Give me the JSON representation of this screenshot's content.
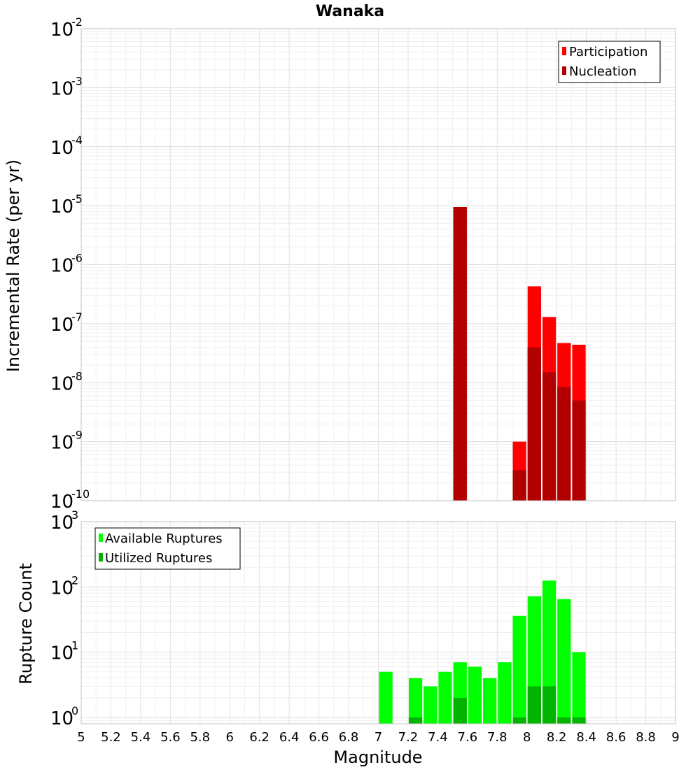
{
  "chart_data": [
    {
      "type": "bar",
      "title": "Wanaka",
      "xlabel": "",
      "ylabel": "Incremental Rate (per yr)",
      "yscale": "log",
      "ylim": [
        1e-10,
        0.01
      ],
      "xlim": [
        5,
        9
      ],
      "bin_width": 0.1,
      "grid": true,
      "legend_position": "top-right",
      "y_ticks": [
        {
          "base": "10",
          "exp": "-10",
          "value": 1e-10
        },
        {
          "base": "10",
          "exp": "-9",
          "value": 1e-09
        },
        {
          "base": "10",
          "exp": "-8",
          "value": 1e-08
        },
        {
          "base": "10",
          "exp": "-7",
          "value": 1e-07
        },
        {
          "base": "10",
          "exp": "-6",
          "value": 1e-06
        },
        {
          "base": "10",
          "exp": "-5",
          "value": 1e-05
        },
        {
          "base": "10",
          "exp": "-4",
          "value": 0.0001
        },
        {
          "base": "10",
          "exp": "-3",
          "value": 0.001
        },
        {
          "base": "10",
          "exp": "-2",
          "value": 0.01
        }
      ],
      "series": [
        {
          "name": "Participation",
          "color": "#ff0000",
          "x": [
            7.55,
            7.95,
            8.05,
            8.15,
            8.25,
            8.35
          ],
          "values": [
            9.5e-06,
            1e-09,
            4.3e-07,
            1.3e-07,
            4.7e-08,
            4.4e-08
          ]
        },
        {
          "name": "Nucleation",
          "color": "#b20000",
          "x": [
            7.55,
            7.95,
            8.05,
            8.15,
            8.25,
            8.35
          ],
          "values": [
            9.5e-06,
            3.3e-10,
            4e-08,
            1.5e-08,
            8.5e-09,
            5e-09
          ]
        }
      ]
    },
    {
      "type": "bar",
      "title": "",
      "xlabel": "Magnitude",
      "ylabel": "Rupture Count",
      "yscale": "log",
      "ylim": [
        0.8,
        1000
      ],
      "xlim": [
        5,
        9
      ],
      "bin_width": 0.1,
      "grid": true,
      "legend_position": "top-left",
      "y_ticks": [
        {
          "base": "10",
          "exp": "0",
          "value": 1
        },
        {
          "base": "10",
          "exp": "1",
          "value": 10
        },
        {
          "base": "10",
          "exp": "2",
          "value": 100
        },
        {
          "base": "10",
          "exp": "3",
          "value": 1000
        }
      ],
      "x_ticks": [
        "5",
        "5.2",
        "5.4",
        "5.6",
        "5.8",
        "6",
        "6.2",
        "6.4",
        "6.6",
        "6.8",
        "7",
        "7.2",
        "7.4",
        "7.6",
        "7.8",
        "8",
        "8.2",
        "8.4",
        "8.6",
        "8.8",
        "9"
      ],
      "series": [
        {
          "name": "Available Ruptures",
          "color": "#00ff00",
          "x": [
            7.05,
            7.25,
            7.35,
            7.45,
            7.55,
            7.65,
            7.75,
            7.85,
            7.95,
            8.05,
            8.15,
            8.25,
            8.35
          ],
          "values": [
            5,
            4,
            3,
            5,
            7,
            6,
            4,
            7,
            36,
            72,
            125,
            65,
            10
          ]
        },
        {
          "name": "Utilized Ruptures",
          "color": "#00b400",
          "x": [
            7.25,
            7.55,
            7.95,
            8.05,
            8.15,
            8.25,
            8.35
          ],
          "values": [
            1,
            2,
            1,
            3,
            3,
            1,
            1
          ]
        }
      ]
    }
  ]
}
